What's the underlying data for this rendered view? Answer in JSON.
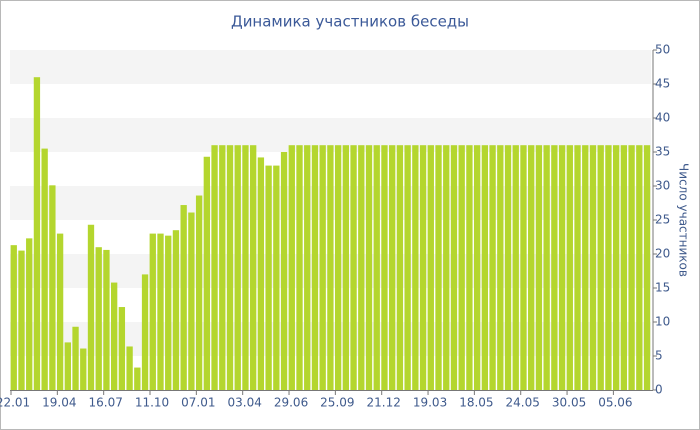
{
  "chart_data": {
    "type": "bar",
    "title": "Динамика участников беседы",
    "y_label": "Число участников",
    "categories": [
      "22.01",
      null,
      null,
      null,
      null,
      null,
      "19.04",
      null,
      null,
      null,
      null,
      null,
      "16.07",
      null,
      null,
      null,
      null,
      null,
      "11.10",
      null,
      null,
      null,
      null,
      null,
      "07.01",
      null,
      null,
      null,
      null,
      null,
      "03.04",
      null,
      null,
      null,
      null,
      null,
      "29.06",
      null,
      null,
      null,
      null,
      null,
      "25.09",
      null,
      null,
      null,
      null,
      null,
      "21.12",
      null,
      null,
      null,
      null,
      null,
      "19.03",
      null,
      null,
      null,
      null,
      null,
      "18.05",
      null,
      null,
      null,
      null,
      null,
      "24.05",
      null,
      null,
      null,
      null,
      null,
      "30.05",
      null,
      null,
      null,
      null,
      null,
      "05.06",
      null,
      null,
      null,
      null
    ],
    "values": [
      21.3,
      20.5,
      22.3,
      46,
      35.5,
      30.1,
      23,
      7,
      9.3,
      6.1,
      24.3,
      21,
      20.6,
      15.8,
      12.2,
      6.4,
      3.3,
      17,
      23,
      23,
      22.7,
      23.5,
      27.2,
      26.1,
      28.6,
      34.3,
      36,
      36,
      36,
      36,
      36,
      36,
      34.2,
      33,
      33,
      35,
      36,
      36,
      36,
      36,
      36,
      36,
      36,
      36,
      36,
      36,
      36,
      36,
      36,
      36,
      36,
      36,
      36,
      36,
      36,
      36,
      36,
      36,
      36,
      36,
      36,
      36,
      36,
      36,
      36,
      36,
      36,
      36,
      36,
      36,
      36,
      36,
      36,
      36,
      36,
      36,
      36,
      36,
      36,
      36,
      36,
      36,
      36
    ],
    "color": "#b4d62e",
    "ylim": [
      0,
      50
    ],
    "yticks": [
      0,
      5,
      10,
      15,
      20,
      25,
      30,
      35,
      40,
      45,
      50
    ],
    "grid": "bands",
    "y_axis_side": "right"
  }
}
